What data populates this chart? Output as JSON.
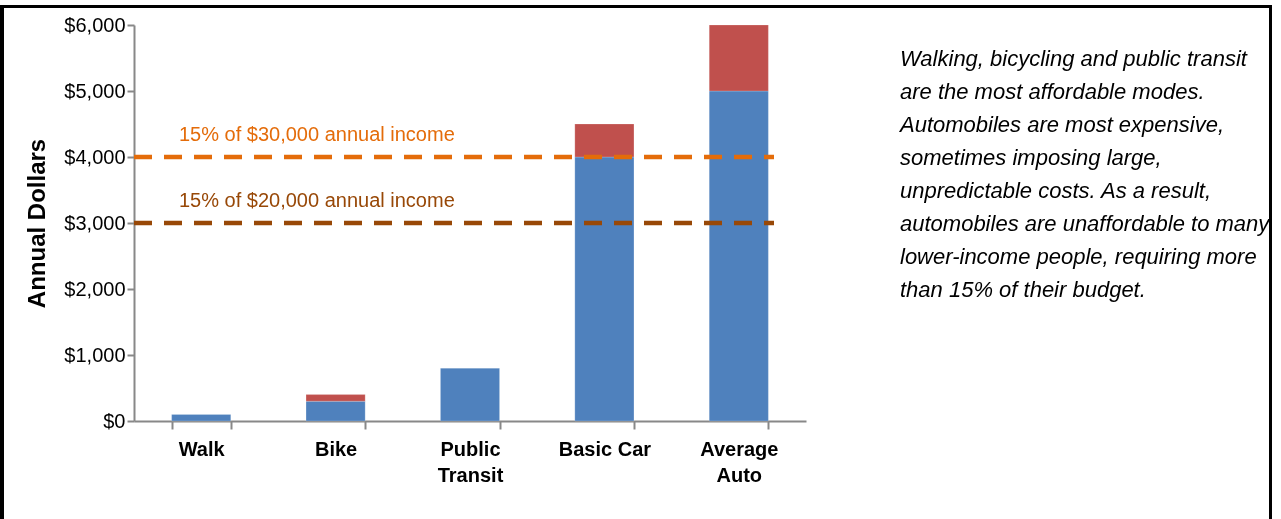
{
  "chart_data": {
    "type": "bar",
    "stacked": true,
    "ylabel": "Annual Dollars",
    "categories": [
      "Walk",
      "Bike",
      "Public Transit",
      "Basic Car",
      "Average Auto"
    ],
    "series": [
      {
        "color": "#4f81bd",
        "values": [
          100,
          300,
          800,
          4000,
          5000
        ]
      },
      {
        "color": "#c0504d",
        "values": [
          null,
          100,
          null,
          500,
          1000
        ]
      }
    ],
    "ylim": [
      0,
      6000
    ],
    "yticks": [
      {
        "value": 0,
        "label": "$0"
      },
      {
        "value": 1000,
        "label": "$1,000"
      },
      {
        "value": 2000,
        "label": "$2,000"
      },
      {
        "value": 3000,
        "label": "$3,000"
      },
      {
        "value": 4000,
        "label": "$4,000"
      },
      {
        "value": 5000,
        "label": "$5,000"
      },
      {
        "value": 6000,
        "label": "$6,000"
      }
    ],
    "ref_lines": [
      {
        "axis": "y",
        "value": 4000,
        "label": "15% of $30,000 annual income",
        "color": "#e46c0a",
        "line_style": "dashed"
      },
      {
        "axis": "y",
        "value": 3000,
        "label": "15% of $20,000 annual income",
        "color": "#984807",
        "line_style": "dashed"
      }
    ],
    "annotations": [
      "Walking, bicycling and public transit are the most affordable modes. Automobiles are most expensive, sometimes imposing large, unpredictable costs. As a result, automobiles are unaffordable to many lower-income people, requiring more than 15% of their budget."
    ],
    "grid": false,
    "legend": false
  }
}
